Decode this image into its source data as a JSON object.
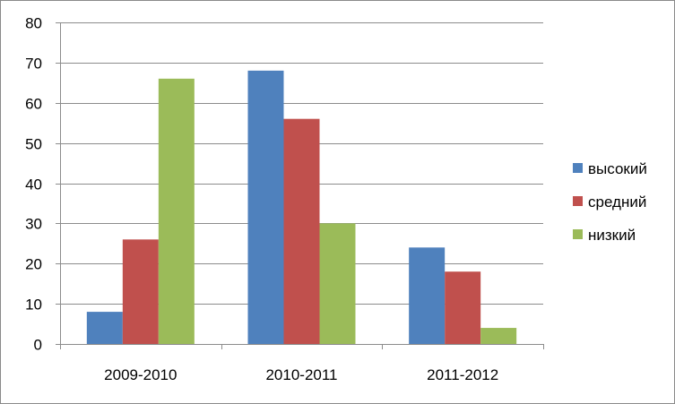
{
  "chart_data": {
    "type": "bar",
    "categories": [
      "2009-2010",
      "2010-2011",
      "2011-2012"
    ],
    "series": [
      {
        "name": "высокий",
        "color": "#4F81BD",
        "values": [
          8,
          68,
          24
        ]
      },
      {
        "name": "средний",
        "color": "#C0504D",
        "values": [
          26,
          56,
          18
        ]
      },
      {
        "name": "низкий",
        "color": "#9BBB59",
        "values": [
          66,
          30,
          4
        ]
      }
    ],
    "title": "",
    "xlabel": "",
    "ylabel": "",
    "ylim": [
      0,
      80
    ],
    "yticks": [
      0,
      10,
      20,
      30,
      40,
      50,
      60,
      70,
      80
    ],
    "grid": true,
    "legend": "right"
  }
}
